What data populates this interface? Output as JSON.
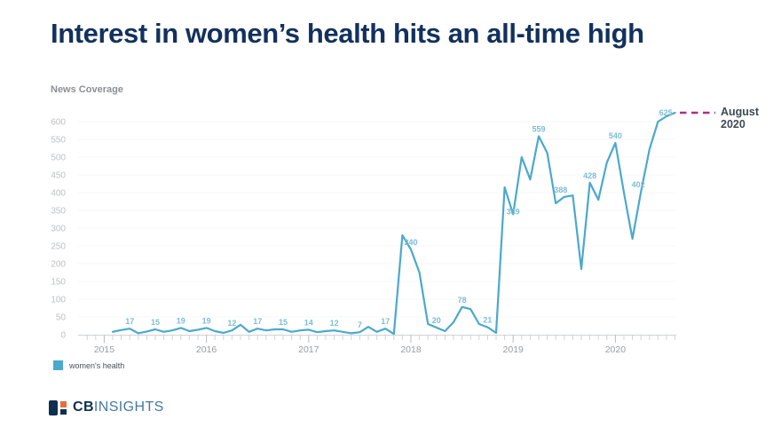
{
  "header": {
    "title": "Interest in women’s health hits an all-time high"
  },
  "chart_data": {
    "type": "line",
    "title": "Interest in women’s health hits an all-time high",
    "ylabel": "News Coverage",
    "xlabel": "",
    "ylim": [
      0,
      650
    ],
    "yticks": [
      0,
      50,
      100,
      150,
      200,
      250,
      300,
      350,
      400,
      450,
      500,
      550,
      600
    ],
    "xticks_years": [
      "2015",
      "2016",
      "2017",
      "2018",
      "2019",
      "2020"
    ],
    "x_start_month": "2015-02",
    "x_end_month": "2020-08",
    "grid": "horizontal-faint",
    "legend_position": "bottom-left",
    "series": [
      {
        "name": "women's health",
        "color": "#4AA9CD",
        "label_color": "#7FBCD6",
        "values": [
          8,
          13,
          17,
          4,
          9,
          15,
          8,
          12,
          19,
          10,
          14,
          19,
          10,
          5,
          12,
          28,
          8,
          17,
          12,
          15,
          15,
          8,
          12,
          14,
          7,
          10,
          12,
          8,
          4,
          7,
          22,
          8,
          17,
          2,
          280,
          240,
          175,
          30,
          20,
          10,
          35,
          78,
          72,
          30,
          21,
          5,
          415,
          339,
          500,
          437,
          559,
          512,
          370,
          388,
          392,
          185,
          428,
          380,
          485,
          540,
          400,
          270,
          402,
          522,
          600,
          615,
          625
        ],
        "labels": [
          {
            "i": 2,
            "text": "17"
          },
          {
            "i": 5,
            "text": "15"
          },
          {
            "i": 8,
            "text": "19"
          },
          {
            "i": 11,
            "text": "19"
          },
          {
            "i": 14,
            "text": "12"
          },
          {
            "i": 17,
            "text": "17"
          },
          {
            "i": 20,
            "text": "15"
          },
          {
            "i": 23,
            "text": "14"
          },
          {
            "i": 26,
            "text": "12"
          },
          {
            "i": 29,
            "text": "7"
          },
          {
            "i": 32,
            "text": "17"
          },
          {
            "i": 35,
            "text": "240"
          },
          {
            "i": 38,
            "text": "20"
          },
          {
            "i": 41,
            "text": "78"
          },
          {
            "i": 44,
            "text": "21"
          },
          {
            "i": 47,
            "text": "339",
            "dy": 5
          },
          {
            "i": 50,
            "text": "559"
          },
          {
            "i": 53,
            "text": "388",
            "dx": -4
          },
          {
            "i": 56,
            "text": "428"
          },
          {
            "i": 59,
            "text": "540"
          },
          {
            "i": 62,
            "text": "402",
            "dx": -3
          },
          {
            "i": 66,
            "text": "625",
            "anchor": "end",
            "dx": -3,
            "dy": 8
          }
        ]
      }
    ],
    "annotation": {
      "label": "August 2020",
      "value": 625,
      "dash_color": "#A8308C"
    }
  },
  "footer": {
    "brand_bold": "CB",
    "brand_light": "INSIGHTS"
  }
}
